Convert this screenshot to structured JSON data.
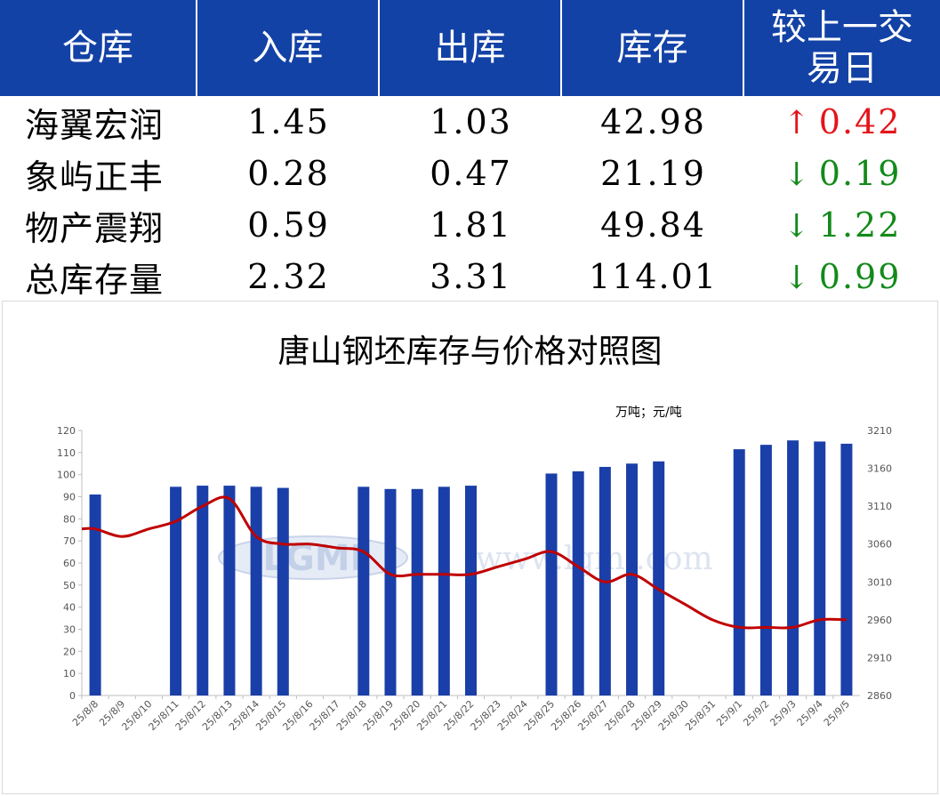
{
  "table": {
    "headers": [
      "仓库",
      "入库",
      "出库",
      "库存",
      "较上一交\n易日"
    ],
    "header_lines": [
      [
        "仓库"
      ],
      [
        "入库"
      ],
      [
        "出库"
      ],
      [
        "库存"
      ],
      [
        "较上一交",
        "易日"
      ]
    ],
    "rows": [
      {
        "name": "海翼宏润",
        "in": "1.45",
        "out": "1.03",
        "stock": "42.98",
        "change": "0.42",
        "dir": "up",
        "arrow": "↑"
      },
      {
        "name": "象屿正丰",
        "in": "0.28",
        "out": "0.47",
        "stock": "21.19",
        "change": "0.19",
        "dir": "down",
        "arrow": "↓"
      },
      {
        "name": "物产震翔",
        "in": "0.59",
        "out": "1.81",
        "stock": "49.84",
        "change": "1.22",
        "dir": "down",
        "arrow": "↓"
      },
      {
        "name": "总库存量",
        "in": "2.32",
        "out": "3.31",
        "stock": "114.01",
        "change": "0.99",
        "dir": "down",
        "arrow": "↓"
      }
    ]
  },
  "colors": {
    "header_bg": "#1342a6",
    "bar": "#1a3fa8",
    "line": "#c00000",
    "up": "#e3151a",
    "down": "#138a1a"
  },
  "chart_data": {
    "type": "bar",
    "title": "唐山钢坯库存与价格对照图",
    "unit_label": "万吨；元/吨",
    "categories": [
      "25/8/8",
      "25/8/9",
      "25/8/10",
      "25/8/11",
      "25/8/12",
      "25/8/13",
      "25/8/14",
      "25/8/15",
      "25/8/16",
      "25/8/17",
      "25/8/18",
      "25/8/19",
      "25/8/20",
      "25/8/21",
      "25/8/22",
      "25/8/23",
      "25/8/24",
      "25/8/25",
      "25/8/26",
      "25/8/27",
      "25/8/28",
      "25/8/29",
      "25/8/30",
      "25/8/31",
      "25/9/1",
      "25/9/2",
      "25/9/3",
      "25/9/4",
      "25/9/5"
    ],
    "series": [
      {
        "type": "bar",
        "axis": "left",
        "values": [
          91,
          null,
          null,
          94.5,
          95,
          95,
          94.5,
          94,
          null,
          null,
          94.5,
          93.5,
          93.5,
          94.5,
          95,
          null,
          null,
          100.5,
          101.5,
          103.5,
          105,
          106,
          null,
          null,
          111.5,
          113.5,
          115.5,
          115,
          114
        ]
      },
      {
        "type": "line",
        "axis": "right",
        "values": [
          3080,
          3070,
          3080,
          3090,
          3110,
          3120,
          3070,
          3060,
          3060,
          3055,
          3050,
          3020,
          3020,
          3020,
          3020,
          3030,
          3040,
          3050,
          3030,
          3010,
          3020,
          3000,
          2980,
          2960,
          2950,
          2950,
          2950,
          2960,
          2960
        ]
      }
    ],
    "ylim_left": [
      0,
      120
    ],
    "yticks_left": [
      0,
      10,
      20,
      30,
      40,
      50,
      60,
      70,
      80,
      90,
      100,
      110,
      120
    ],
    "ylim_right": [
      2860,
      3210
    ],
    "yticks_right": [
      2860,
      2910,
      2960,
      3010,
      3060,
      3110,
      3160,
      3210
    ],
    "watermark": [
      "LGMI",
      "www.lgmi.com"
    ]
  }
}
